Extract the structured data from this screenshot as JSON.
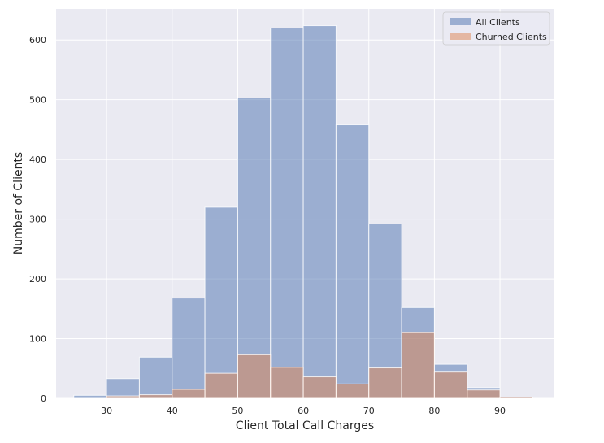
{
  "chart_data": {
    "type": "bar",
    "title": "",
    "xlabel": "Client Total Call Charges",
    "ylabel": "Number of Clients",
    "xlim": [
      22.3,
      98.3
    ],
    "ylim": [
      0,
      652
    ],
    "x_ticks": [
      30,
      40,
      50,
      60,
      70,
      80,
      90
    ],
    "y_ticks": [
      0,
      100,
      200,
      300,
      400,
      500,
      600
    ],
    "grid": true,
    "legend_position": "top-right",
    "bin_edges": [
      25,
      30,
      35,
      40,
      45,
      50,
      55,
      60,
      65,
      70,
      75,
      80,
      85,
      90,
      95
    ],
    "series": [
      {
        "name": "All Clients",
        "color": "#4c72b0",
        "values": [
          5,
          33,
          69,
          168,
          320,
          503,
          620,
          624,
          458,
          292,
          152,
          57,
          18,
          2
        ]
      },
      {
        "name": "Churned Clients",
        "color": "#dd8452",
        "values": [
          0,
          4,
          6,
          15,
          42,
          73,
          52,
          36,
          24,
          51,
          110,
          44,
          14,
          2
        ]
      }
    ],
    "style": {
      "background": "#eaeaf2",
      "grid_color": "#ffffff",
      "bar_alpha": 0.5
    }
  }
}
